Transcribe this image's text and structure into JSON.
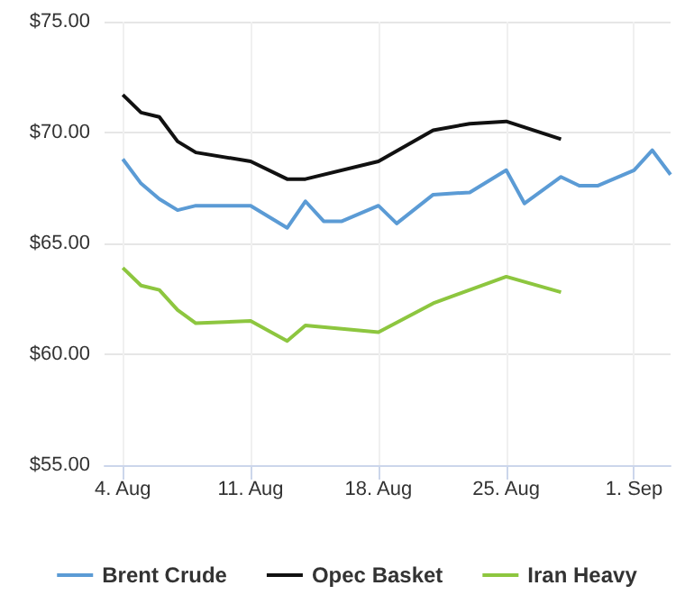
{
  "chart_data": {
    "type": "line",
    "x": [
      "--08-04",
      "--08-05",
      "--08-06",
      "--08-07",
      "--08-08",
      "--08-11",
      "--08-13",
      "--08-14",
      "--08-15",
      "--08-16",
      "--08-18",
      "--08-19",
      "--08-21",
      "--08-23",
      "--08-25",
      "--08-26",
      "--08-28",
      "--08-29",
      "--08-30",
      "--09-01",
      "--09-02",
      "--09-03"
    ],
    "series": [
      {
        "name": "Brent Crude",
        "color": "#5b9bd5",
        "values": [
          68.8,
          67.7,
          67.0,
          66.5,
          66.7,
          66.7,
          65.7,
          66.9,
          66.0,
          66.0,
          66.7,
          65.9,
          67.2,
          67.3,
          68.3,
          66.8,
          68.0,
          67.6,
          67.6,
          68.3,
          69.2,
          68.1
        ]
      },
      {
        "name": "Opec Basket",
        "color": "#111111",
        "values": [
          71.7,
          70.9,
          70.7,
          69.6,
          69.1,
          68.7,
          67.9,
          67.9,
          null,
          null,
          68.7,
          null,
          70.1,
          70.4,
          70.5,
          null,
          69.7,
          null,
          null,
          null,
          null,
          null
        ]
      },
      {
        "name": "Iran Heavy",
        "color": "#8dc63f",
        "values": [
          63.9,
          63.1,
          62.9,
          62.0,
          61.4,
          61.5,
          60.6,
          61.3,
          null,
          null,
          61.0,
          null,
          62.3,
          null,
          63.5,
          null,
          62.8,
          null,
          null,
          null,
          null,
          null
        ]
      }
    ],
    "xlim": [
      "--08-03",
      "--09-03"
    ],
    "xticks": [
      {
        "value": "--08-04",
        "label": "4. Aug"
      },
      {
        "value": "--08-11",
        "label": "11. Aug"
      },
      {
        "value": "--08-18",
        "label": "18. Aug"
      },
      {
        "value": "--08-25",
        "label": "25. Aug"
      },
      {
        "value": "--09-01",
        "label": "1. Sep"
      }
    ],
    "ylim": [
      55,
      75
    ],
    "yticks": [
      {
        "value": 55,
        "label": "$55.00"
      },
      {
        "value": 60,
        "label": "$60.00"
      },
      {
        "value": 65,
        "label": "$65.00"
      },
      {
        "value": 70,
        "label": "$70.00"
      },
      {
        "value": 75,
        "label": "$75.00"
      }
    ],
    "grid": true,
    "legend": "bottom",
    "marker": "none",
    "line_style": "solid"
  }
}
